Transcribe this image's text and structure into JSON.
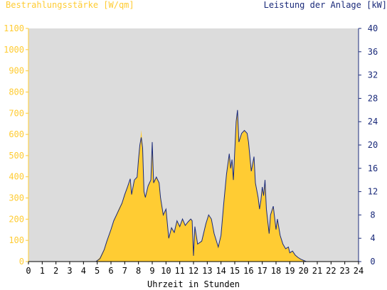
{
  "chart_data": {
    "type": "area",
    "left_axis_title": "Bestrahlungsstärke [W/qm]",
    "right_axis_title": "Leistung der Anlage [kW]",
    "xlabel": "Uhrzeit in Stunden",
    "x_range": [
      0,
      24
    ],
    "x_ticks": [
      "0",
      "1",
      "2",
      "3",
      "4",
      "5",
      "6",
      "7",
      "8",
      "9",
      "10",
      "11",
      "12",
      "13",
      "14",
      "15",
      "16",
      "17",
      "18",
      "19",
      "20",
      "21",
      "22",
      "23",
      "24"
    ],
    "y_left_range": [
      0,
      1100
    ],
    "y_left_ticks": [
      "0",
      "100",
      "200",
      "300",
      "400",
      "500",
      "600",
      "700",
      "800",
      "900",
      "1000",
      "1100"
    ],
    "y_right_range": [
      0,
      40
    ],
    "y_right_ticks": [
      "0",
      "4",
      "8",
      "12",
      "16",
      "20",
      "24",
      "28",
      "32",
      "36",
      "40"
    ],
    "grid": false,
    "colors": {
      "plot_background": "#dcdcdc",
      "left_axis": "#ffcc33",
      "right_axis": "#1a2a7a",
      "irradiance_fill": "#ffcc33",
      "power_line": "#1a2a7a"
    },
    "series": [
      {
        "axis": "left",
        "style": "area",
        "x": [
          0,
          4.9,
          5.2,
          5.5,
          5.7,
          6.0,
          6.2,
          6.5,
          6.8,
          7.0,
          7.2,
          7.4,
          7.5,
          7.7,
          7.9,
          8.0,
          8.1,
          8.2,
          8.3,
          8.4,
          8.5,
          8.7,
          8.9,
          9.0,
          9.1,
          9.3,
          9.5,
          9.6,
          9.8,
          10.0,
          10.2,
          10.4,
          10.6,
          10.8,
          11.0,
          11.2,
          11.4,
          11.6,
          11.8,
          11.9,
          12.0,
          12.1,
          12.3,
          12.6,
          12.9,
          13.1,
          13.3,
          13.5,
          13.8,
          14.0,
          14.2,
          14.4,
          14.6,
          14.7,
          14.8,
          14.9,
          15.0,
          15.1,
          15.2,
          15.3,
          15.5,
          15.7,
          15.9,
          16.0,
          16.2,
          16.4,
          16.5,
          16.7,
          16.8,
          16.9,
          17.0,
          17.1,
          17.2,
          17.3,
          17.5,
          17.6,
          17.8,
          18.0,
          18.1,
          18.3,
          18.5,
          18.7,
          18.9,
          19.0,
          19.2,
          19.4,
          19.6,
          19.8,
          20.0,
          20.2,
          20.4,
          20.6,
          20.8,
          21,
          24
        ],
        "y": [
          0,
          0,
          20,
          60,
          100,
          150,
          190,
          240,
          280,
          320,
          350,
          380,
          320,
          380,
          400,
          480,
          550,
          620,
          550,
          330,
          300,
          360,
          380,
          560,
          380,
          400,
          370,
          300,
          220,
          250,
          110,
          160,
          140,
          190,
          170,
          200,
          170,
          185,
          200,
          195,
          40,
          170,
          80,
          100,
          180,
          220,
          200,
          130,
          70,
          120,
          280,
          420,
          500,
          440,
          480,
          380,
          520,
          660,
          700,
          560,
          600,
          620,
          600,
          560,
          420,
          490,
          370,
          300,
          250,
          290,
          350,
          310,
          380,
          250,
          130,
          220,
          260,
          150,
          200,
          120,
          80,
          60,
          70,
          40,
          50,
          30,
          20,
          10,
          5,
          0,
          0,
          0,
          0,
          0,
          0
        ],
        "name": ""
      },
      {
        "axis": "right",
        "style": "line",
        "x": [
          0,
          4.9,
          5.2,
          5.5,
          5.7,
          6.0,
          6.2,
          6.5,
          6.8,
          7.0,
          7.2,
          7.4,
          7.5,
          7.7,
          7.9,
          8.0,
          8.1,
          8.2,
          8.3,
          8.4,
          8.5,
          8.7,
          8.9,
          9.0,
          9.1,
          9.3,
          9.5,
          9.6,
          9.8,
          10.0,
          10.2,
          10.4,
          10.6,
          10.8,
          11.0,
          11.2,
          11.4,
          11.6,
          11.8,
          11.9,
          12.0,
          12.1,
          12.3,
          12.6,
          12.9,
          13.1,
          13.3,
          13.5,
          13.8,
          14.0,
          14.2,
          14.4,
          14.6,
          14.7,
          14.8,
          14.9,
          15.0,
          15.1,
          15.2,
          15.3,
          15.5,
          15.7,
          15.9,
          16.0,
          16.2,
          16.4,
          16.5,
          16.7,
          16.8,
          16.9,
          17.0,
          17.1,
          17.2,
          17.3,
          17.5,
          17.6,
          17.8,
          18.0,
          18.1,
          18.3,
          18.5,
          18.7,
          18.9,
          19.0,
          19.2,
          19.4,
          19.6,
          19.8,
          20.0,
          20.2,
          20.4,
          20.6,
          20.8,
          21,
          24
        ],
        "y": [
          0,
          0,
          0.5,
          2.0,
          3.5,
          5.5,
          7.0,
          8.5,
          10.0,
          11.5,
          12.8,
          14.2,
          11.5,
          14.0,
          14.5,
          17.5,
          20.0,
          21.3,
          19.5,
          12.0,
          11.0,
          13.0,
          14.0,
          20.5,
          13.5,
          14.5,
          13.5,
          11.0,
          8.0,
          9.0,
          4.0,
          5.8,
          5.0,
          7.0,
          6.0,
          7.3,
          6.2,
          6.8,
          7.3,
          7.0,
          1.0,
          6.0,
          3.0,
          3.5,
          6.5,
          8.0,
          7.3,
          4.8,
          2.5,
          4.5,
          10.0,
          15.0,
          18.5,
          16.0,
          17.5,
          14.0,
          19.0,
          24.0,
          26.0,
          20.5,
          22.0,
          22.5,
          22.0,
          20.5,
          15.5,
          18.0,
          13.5,
          11.0,
          9.0,
          10.5,
          12.8,
          11.3,
          14.0,
          9.0,
          4.8,
          8.0,
          9.5,
          5.5,
          7.3,
          4.5,
          3.0,
          2.2,
          2.5,
          1.5,
          1.8,
          1.1,
          0.7,
          0.4,
          0.2,
          0,
          0,
          0,
          0,
          0,
          0
        ],
        "name": ""
      }
    ]
  }
}
